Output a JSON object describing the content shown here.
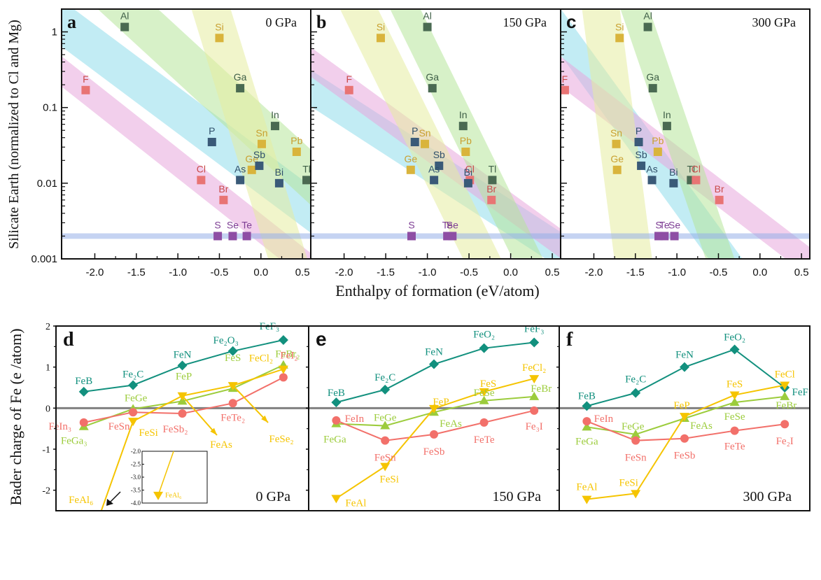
{
  "chart_data": [
    {
      "id": "top",
      "type": "scatter",
      "xlabel": "Enthalpy of formation (eV/atom)",
      "ylabel": "Silicate Earth (normalized to Cl and Mg)",
      "xlim": [
        -2.4,
        0.6
      ],
      "ylim": [
        0.001,
        2
      ],
      "yscale": "log",
      "xticks": [
        "-2.0",
        "-1.5",
        "-1.0",
        "-0.5",
        "0.0",
        "0.5"
      ],
      "xtick_values": [
        -2.0,
        -1.5,
        -1.0,
        -0.5,
        0.0,
        0.5
      ],
      "yticks": [
        "1",
        "0.1",
        "0.01",
        "0.001"
      ],
      "ytick_values": [
        1,
        0.1,
        0.01,
        0.001
      ],
      "group_colors": {
        "halogen": "#e87474",
        "pnictogen": "#3a5a78",
        "group13": "#4a6a52",
        "group14": "#d9b43c",
        "chalcogen": "#8e4ea4"
      },
      "group_label_colors": {
        "halogen": "#c94a4a",
        "pnictogen": "#2f4f6a",
        "group13": "#3f5f47",
        "group14": "#c9a030",
        "chalcogen": "#7e3e94"
      },
      "band_colors": {
        "halogen": "#e8a8dc",
        "pnictogen": "#8fdceb",
        "group13": "#b6e69a",
        "group14": "#e6eca0",
        "chalcogen": "#96aee8"
      },
      "panels": [
        {
          "letter": "a",
          "pressure": "0 GPa",
          "points": [
            {
              "el": "Al",
              "g": "group13",
              "x": -1.64,
              "y": 1.16
            },
            {
              "el": "Si",
              "g": "group14",
              "x": -0.5,
              "y": 0.83
            },
            {
              "el": "F",
              "g": "halogen",
              "x": -2.11,
              "y": 0.17
            },
            {
              "el": "Ga",
              "g": "group13",
              "x": -0.25,
              "y": 0.18
            },
            {
              "el": "In",
              "g": "group13",
              "x": 0.17,
              "y": 0.057
            },
            {
              "el": "P",
              "g": "pnictogen",
              "x": -0.59,
              "y": 0.035
            },
            {
              "el": "Sn",
              "g": "group14",
              "x": 0.01,
              "y": 0.033
            },
            {
              "el": "Pb",
              "g": "group14",
              "x": 0.43,
              "y": 0.026
            },
            {
              "el": "Ge",
              "g": "group14",
              "x": -0.11,
              "y": 0.015
            },
            {
              "el": "Sb",
              "g": "pnictogen",
              "x": -0.02,
              "y": 0.017
            },
            {
              "el": "Cl",
              "g": "halogen",
              "x": -0.72,
              "y": 0.011
            },
            {
              "el": "As",
              "g": "pnictogen",
              "x": -0.25,
              "y": 0.011
            },
            {
              "el": "Bi",
              "g": "pnictogen",
              "x": 0.22,
              "y": 0.01
            },
            {
              "el": "Tl",
              "g": "group13",
              "x": 0.55,
              "y": 0.011
            },
            {
              "el": "Br",
              "g": "halogen",
              "x": -0.45,
              "y": 0.006
            },
            {
              "el": "S",
              "g": "chalcogen",
              "x": -0.52,
              "y": 0.002
            },
            {
              "el": "Se",
              "g": "chalcogen",
              "x": -0.34,
              "y": 0.002
            },
            {
              "el": "Te",
              "g": "chalcogen",
              "x": -0.17,
              "y": 0.002
            }
          ],
          "bands": [
            {
              "g": "pnictogen",
              "p1": [
                -2.4,
                1.3
              ],
              "p2": [
                0.6,
                0.0045
              ],
              "w": 0.55
            },
            {
              "g": "halogen",
              "p1": [
                -2.4,
                0.3
              ],
              "p2": [
                0.6,
                0.00075
              ],
              "w": 0.35
            },
            {
              "g": "group13",
              "p1": [
                -1.9,
                4
              ],
              "p2": [
                0.6,
                0.012
              ],
              "w": 0.6
            },
            {
              "g": "group14",
              "p1": [
                -0.65,
                3
              ],
              "p2": [
                0.35,
                0.0008
              ],
              "w": 0.55
            },
            {
              "g": "chalcogen",
              "p1": [
                -2.4,
                0.002
              ],
              "p2": [
                0.6,
                0.002
              ],
              "w": 0.08
            }
          ]
        },
        {
          "letter": "b",
          "pressure": "150 GPa",
          "points": [
            {
              "el": "Si",
              "g": "group14",
              "x": -1.56,
              "y": 0.83
            },
            {
              "el": "Al",
              "g": "group13",
              "x": -1.0,
              "y": 1.16
            },
            {
              "el": "F",
              "g": "halogen",
              "x": -1.94,
              "y": 0.17
            },
            {
              "el": "Ga",
              "g": "group13",
              "x": -0.94,
              "y": 0.18
            },
            {
              "el": "In",
              "g": "group13",
              "x": -0.57,
              "y": 0.057
            },
            {
              "el": "P",
              "g": "pnictogen",
              "x": -1.15,
              "y": 0.035
            },
            {
              "el": "Sn",
              "g": "group14",
              "x": -1.03,
              "y": 0.033
            },
            {
              "el": "Pb",
              "g": "group14",
              "x": -0.54,
              "y": 0.026
            },
            {
              "el": "Ge",
              "g": "group14",
              "x": -1.2,
              "y": 0.015
            },
            {
              "el": "Sb",
              "g": "pnictogen",
              "x": -0.86,
              "y": 0.017
            },
            {
              "el": "As",
              "g": "pnictogen",
              "x": -0.92,
              "y": 0.011
            },
            {
              "el": "Cl",
              "g": "halogen",
              "x": -0.49,
              "y": 0.011
            },
            {
              "el": "Bi",
              "g": "pnictogen",
              "x": -0.51,
              "y": 0.01
            },
            {
              "el": "Tl",
              "g": "group13",
              "x": -0.22,
              "y": 0.011
            },
            {
              "el": "Br",
              "g": "halogen",
              "x": -0.23,
              "y": 0.006
            },
            {
              "el": "S",
              "g": "chalcogen",
              "x": -1.19,
              "y": 0.002
            },
            {
              "el": "Te",
              "g": "chalcogen",
              "x": -0.76,
              "y": 0.002
            },
            {
              "el": "Se",
              "g": "chalcogen",
              "x": -0.7,
              "y": 0.002
            }
          ],
          "bands": [
            {
              "g": "pnictogen",
              "p1": [
                -2.4,
                0.18
              ],
              "p2": [
                0.6,
                0.0013
              ],
              "w": 0.45
            },
            {
              "g": "halogen",
              "p1": [
                -2.4,
                0.4
              ],
              "p2": [
                0.6,
                0.0016
              ],
              "w": 0.35
            },
            {
              "g": "group13",
              "p1": [
                -1.4,
                4
              ],
              "p2": [
                0.25,
                0.0008
              ],
              "w": 0.4
            },
            {
              "g": "group14",
              "p1": [
                -1.9,
                3
              ],
              "p2": [
                -0.3,
                0.0008
              ],
              "w": 0.5
            },
            {
              "g": "chalcogen",
              "p1": [
                -2.4,
                0.002
              ],
              "p2": [
                0.6,
                0.002
              ],
              "w": 0.08
            }
          ]
        },
        {
          "letter": "c",
          "pressure": "300 GPa",
          "points": [
            {
              "el": "Si",
              "g": "group14",
              "x": -1.69,
              "y": 0.83
            },
            {
              "el": "Al",
              "g": "group13",
              "x": -1.35,
              "y": 1.16
            },
            {
              "el": "F",
              "g": "halogen",
              "x": -2.35,
              "y": 0.17
            },
            {
              "el": "Ga",
              "g": "group13",
              "x": -1.29,
              "y": 0.18
            },
            {
              "el": "In",
              "g": "group13",
              "x": -1.12,
              "y": 0.057
            },
            {
              "el": "Sn",
              "g": "group14",
              "x": -1.73,
              "y": 0.033
            },
            {
              "el": "P",
              "g": "pnictogen",
              "x": -1.46,
              "y": 0.035
            },
            {
              "el": "Pb",
              "g": "group14",
              "x": -1.23,
              "y": 0.026
            },
            {
              "el": "Ge",
              "g": "group14",
              "x": -1.72,
              "y": 0.015
            },
            {
              "el": "Sb",
              "g": "pnictogen",
              "x": -1.43,
              "y": 0.017
            },
            {
              "el": "As",
              "g": "pnictogen",
              "x": -1.3,
              "y": 0.011
            },
            {
              "el": "Bi",
              "g": "pnictogen",
              "x": -1.04,
              "y": 0.01
            },
            {
              "el": "Tl",
              "g": "group13",
              "x": -0.83,
              "y": 0.011
            },
            {
              "el": "Cl",
              "g": "halogen",
              "x": -0.77,
              "y": 0.011
            },
            {
              "el": "Br",
              "g": "halogen",
              "x": -0.49,
              "y": 0.006
            },
            {
              "el": "S",
              "g": "chalcogen",
              "x": -1.22,
              "y": 0.002
            },
            {
              "el": "Te",
              "g": "chalcogen",
              "x": -1.15,
              "y": 0.002
            },
            {
              "el": "Se",
              "g": "chalcogen",
              "x": -1.03,
              "y": 0.002
            }
          ],
          "bands": [
            {
              "g": "pnictogen",
              "p1": [
                -2.4,
                1.0
              ],
              "p2": [
                -0.35,
                0.0008
              ],
              "w": 0.4
            },
            {
              "g": "halogen",
              "p1": [
                -2.4,
                0.3
              ],
              "p2": [
                0.6,
                0.0009
              ],
              "w": 0.35
            },
            {
              "g": "group13",
              "p1": [
                -1.6,
                4
              ],
              "p2": [
                -0.45,
                0.0008
              ],
              "w": 0.4
            },
            {
              "g": "group14",
              "p1": [
                -1.95,
                4
              ],
              "p2": [
                -1.5,
                0.0006
              ],
              "w": 0.55
            },
            {
              "g": "chalcogen",
              "p1": [
                -2.4,
                0.002
              ],
              "p2": [
                0.6,
                0.002
              ],
              "w": 0.08
            }
          ]
        }
      ]
    },
    {
      "id": "bottom",
      "type": "line",
      "ylabel": "Bader charge of Fe (e /atom)",
      "ylim": [
        -2.5,
        2
      ],
      "yticks": [
        "2",
        "1",
        "0",
        "-1",
        "-2"
      ],
      "ytick_values": [
        2,
        1,
        0,
        -1,
        -2
      ],
      "zero_line_color": "#808080",
      "series_colors": {
        "teal": "#12907e",
        "green": "#9ccc3c",
        "red": "#f2706a",
        "yellow": "#f5c400"
      },
      "panels": [
        {
          "letter": "d",
          "pressure": "0 GPa",
          "series": [
            {
              "name": "period2",
              "color": "teal",
              "marker": "diamond",
              "labels": [
                "FeB",
                "Fe₂C",
                "FeN",
                "Fe₂O₃",
                "FeF₃"
              ],
              "values": [
                0.4,
                0.56,
                1.04,
                1.39,
                1.66
              ]
            },
            {
              "name": "period4",
              "color": "green",
              "marker": "triangle-up",
              "labels": [
                "FeGa₃",
                "FeGe",
                "FeP",
                "FeS",
                "FeBr₂"
              ],
              "values": [
                -0.45,
                -0.02,
                0.17,
                0.48,
                1.05
              ]
            },
            {
              "name": "period5",
              "color": "red",
              "marker": "circle",
              "labels": [
                "FeIn₃",
                "FeSn",
                "FeSb₂",
                "FeTe₂",
                "FeI₂"
              ],
              "values": [
                -0.35,
                -0.1,
                -0.13,
                0.12,
                0.75
              ]
            },
            {
              "name": "period3",
              "color": "yellow",
              "marker": "triangle-down",
              "labels": [
                "FeAl₆",
                "FeSi",
                "FeP",
                "FeS",
                "FeCl₂"
              ],
              "values": [
                -3.7,
                -0.32,
                0.3,
                0.55,
                0.95
              ]
            }
          ],
          "extra_labels": [
            {
              "text": "FeAs",
              "color": "yellow"
            },
            {
              "text": "FeSe₂",
              "color": "yellow"
            }
          ],
          "inset": {
            "yticks": [
              "-2.0",
              "-2.5",
              "-3.0",
              "-3.5",
              "-4.0"
            ],
            "ytick_values": [
              -2.0,
              -2.5,
              -3.0,
              -3.5,
              -4.0
            ],
            "label": "FeAl₆",
            "value": -3.7
          }
        },
        {
          "letter": "e",
          "pressure": "150 GPa",
          "series": [
            {
              "name": "period2",
              "color": "teal",
              "marker": "diamond",
              "labels": [
                "FeB",
                "Fe₂C",
                "FeN",
                "FeO₂",
                "FeF₃"
              ],
              "values": [
                0.14,
                0.45,
                1.07,
                1.46,
                1.6
              ]
            },
            {
              "name": "period4",
              "color": "green",
              "marker": "triangle-up",
              "labels": [
                "FeGa",
                "FeGe",
                "FeAs",
                "FeSe",
                "FeBr"
              ],
              "values": [
                -0.38,
                -0.43,
                -0.1,
                0.18,
                0.28
              ]
            },
            {
              "name": "period5",
              "color": "red",
              "marker": "circle",
              "labels": [
                "FeIn",
                "FeSn",
                "FeSb",
                "FeTe",
                "Fe₃I"
              ],
              "values": [
                -0.3,
                -0.79,
                -0.64,
                -0.35,
                -0.06
              ]
            },
            {
              "name": "period3",
              "color": "yellow",
              "marker": "triangle-down",
              "labels": [
                "FeAl",
                "FeSi",
                "FeP",
                "FeS",
                "FeCl₂"
              ],
              "values": [
                -2.2,
                -1.42,
                -0.01,
                0.4,
                0.72
              ]
            }
          ]
        },
        {
          "letter": "f",
          "pressure": "300 GPa",
          "series": [
            {
              "name": "period2",
              "color": "teal",
              "marker": "diamond",
              "labels": [
                "FeB",
                "Fe₂C",
                "FeN",
                "FeO₂",
                "FeF"
              ],
              "values": [
                0.05,
                0.37,
                1.0,
                1.43,
                0.5
              ]
            },
            {
              "name": "period4",
              "color": "green",
              "marker": "triangle-up",
              "labels": [
                "FeGa",
                "FeGe",
                "FeAs",
                "FeSe",
                "FeBr"
              ],
              "values": [
                -0.46,
                -0.64,
                -0.25,
                0.14,
                0.28
              ]
            },
            {
              "name": "period5",
              "color": "red",
              "marker": "circle",
              "labels": [
                "FeIn",
                "FeSn",
                "FeSb",
                "FeTe",
                "Fe₂I"
              ],
              "values": [
                -0.32,
                -0.79,
                -0.74,
                -0.55,
                -0.39
              ]
            },
            {
              "name": "period3",
              "color": "yellow",
              "marker": "triangle-down",
              "labels": [
                "FeAl",
                "FeSi",
                "FeP",
                "FeS",
                "FeCl"
              ],
              "values": [
                -2.22,
                -2.08,
                -0.2,
                0.32,
                0.56
              ]
            }
          ]
        }
      ]
    }
  ]
}
